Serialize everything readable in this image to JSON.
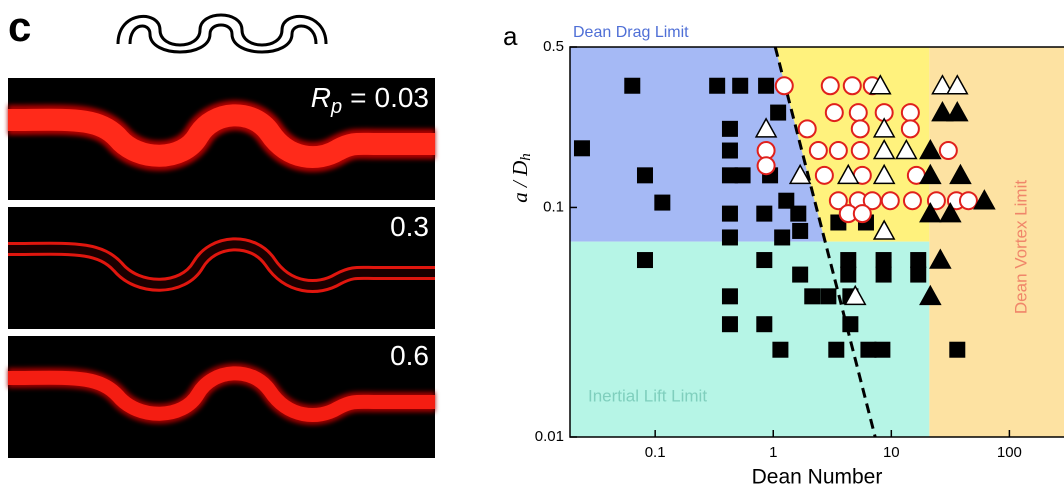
{
  "panel_c": {
    "label": "c",
    "symbol": "R",
    "symbol_sub": "p",
    "symbol_eq": "=",
    "images": [
      {
        "value": 0.03,
        "style": "thick"
      },
      {
        "value": 0.3,
        "style": "double"
      },
      {
        "value": 0.6,
        "style": "medium"
      }
    ]
  },
  "chart_data": {
    "type": "scatter",
    "panel_label": "a",
    "xlabel": "Dean Number",
    "ylabel": "a / D",
    "ylabel_sub": "h",
    "xlog": true,
    "ylog": true,
    "xlim": [
      0.019,
      290
    ],
    "ylim": [
      0.01,
      0.5
    ],
    "xticks": [
      0.1,
      1,
      10,
      100
    ],
    "yticks": [
      0.5,
      0.1,
      0.01
    ],
    "regions": {
      "drag": {
        "label": "Dean Drag Limit",
        "color": "#a5b9f5",
        "text_color": "#4f6fd6"
      },
      "lift": {
        "label": "Inertial Lift Limit",
        "color": "#b6f5e6",
        "text_color": "#7fcfbd"
      },
      "vortex": {
        "label": "Dean Vortex Limit",
        "color": "#fde2a2",
        "text_color": "#f0866a"
      },
      "middle_color": "#fff27d"
    },
    "boundary_y": 0.071,
    "boundary_x": 21,
    "dashed": {
      "x": [
        1.04,
        7.3
      ],
      "y": [
        0.5,
        0.01
      ]
    },
    "series": [
      {
        "marker": "square",
        "color": "#000000",
        "x": [
          0.064,
          0.024,
          0.082,
          0.115,
          0.082,
          0.335,
          0.525,
          0.43,
          0.43,
          0.43,
          0.43,
          0.43,
          0.43,
          0.43,
          0.87,
          1.1,
          0.94,
          0.84,
          0.84,
          1.29,
          1.63,
          1.69,
          1.19,
          1.69,
          2.14,
          2.93,
          4.5,
          3.56,
          6.1,
          4.32,
          4.32,
          8.6,
          8.6,
          16.9,
          16.9,
          0.84,
          1.15,
          3.42,
          6.4,
          8.4,
          36.2,
          4.5,
          0.55
        ],
        "y": [
          0.339,
          0.181,
          0.138,
          0.105,
          0.059,
          0.339,
          0.339,
          0.22,
          0.177,
          0.138,
          0.094,
          0.074,
          0.041,
          0.031,
          0.339,
          0.259,
          0.138,
          0.094,
          0.059,
          0.107,
          0.094,
          0.079,
          0.074,
          0.051,
          0.041,
          0.041,
          0.041,
          0.086,
          0.086,
          0.059,
          0.051,
          0.059,
          0.051,
          0.059,
          0.051,
          0.031,
          0.024,
          0.024,
          0.024,
          0.024,
          0.024,
          0.031,
          0.138
        ]
      },
      {
        "marker": "circle",
        "color": "#e0201c",
        "x": [
          1.24,
          3.04,
          4.67,
          6.9,
          1.94,
          3.29,
          5.25,
          8.7,
          14.5,
          0.87,
          0.87,
          2.41,
          3.56,
          5.46,
          30.4,
          2.71,
          5.68,
          16.3,
          3.56,
          5.25,
          6.9,
          9.8,
          15.1,
          24.1,
          35.6,
          45.0,
          4.32,
          5.68,
          14.5,
          5.46
        ],
        "y": [
          0.339,
          0.339,
          0.339,
          0.339,
          0.22,
          0.259,
          0.259,
          0.259,
          0.259,
          0.177,
          0.152,
          0.177,
          0.177,
          0.177,
          0.177,
          0.138,
          0.138,
          0.138,
          0.107,
          0.107,
          0.107,
          0.107,
          0.107,
          0.107,
          0.107,
          0.107,
          0.094,
          0.094,
          0.22,
          0.22
        ]
      },
      {
        "marker": "triangle-open",
        "color": "#000000",
        "x": [
          8.07,
          27.1,
          36.2,
          0.87,
          8.7,
          8.7,
          13.4,
          1.69,
          4.32,
          8.7,
          8.7,
          4.95
        ],
        "y": [
          0.339,
          0.339,
          0.339,
          0.22,
          0.22,
          0.177,
          0.177,
          0.138,
          0.138,
          0.138,
          0.079,
          0.041
        ]
      },
      {
        "marker": "triangle",
        "color": "#000000",
        "x": [
          27.1,
          36.2,
          21.4,
          21.4,
          38.5,
          21.4,
          61.4,
          26.0,
          21.4,
          31.6
        ],
        "y": [
          0.259,
          0.259,
          0.177,
          0.138,
          0.138,
          0.094,
          0.107,
          0.059,
          0.041,
          0.094
        ]
      }
    ]
  }
}
